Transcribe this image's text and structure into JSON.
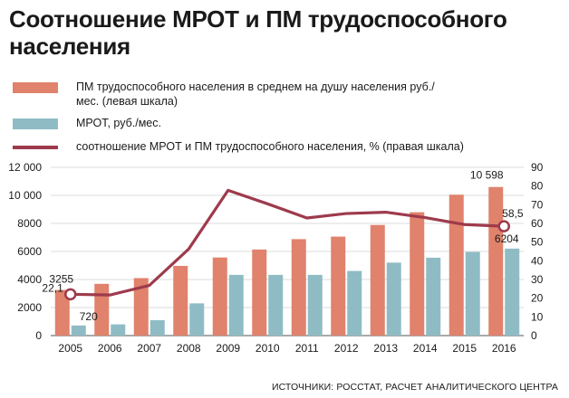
{
  "header": {
    "title": "Соотношение МРОТ и ПМ трудоспособного населения"
  },
  "legend": [
    {
      "label": "ПМ трудоспособного населения в среднем на душу населения руб./мес. (левая шкала)",
      "color": "#e0826c",
      "kind": "bar"
    },
    {
      "label": "МРОТ, руб./мес.",
      "color": "#8fbcc4",
      "kind": "bar"
    },
    {
      "label": "соотношение МРОТ и ПМ трудоспособного населения, % (правая шкала)",
      "color": "#9e3a4c",
      "kind": "line"
    }
  ],
  "source": "ИСТОЧНИКИ: РОССТАТ, РАСЧЕТ АНАЛИТИЧЕСКОГО ЦЕНТРА",
  "chart_data": {
    "type": "bar",
    "categories": [
      "2005",
      "2006",
      "2007",
      "2008",
      "2009",
      "2010",
      "2011",
      "2012",
      "2013",
      "2014",
      "2015",
      "2016"
    ],
    "series": [
      {
        "name": "ПМ трудоспособного населения в среднем на душу населения руб./мес. (левая шкала)",
        "type": "bar",
        "axis": "left",
        "color": "#e0826c",
        "values": [
          3255,
          3690,
          4100,
          4970,
          5570,
          6140,
          6880,
          7060,
          7890,
          8800,
          10050,
          10598
        ]
      },
      {
        "name": "МРОТ, руб./мес.",
        "type": "bar",
        "axis": "left",
        "color": "#8fbcc4",
        "values": [
          720,
          800,
          1100,
          2300,
          4330,
          4330,
          4330,
          4610,
          5205,
          5554,
          5965,
          6204
        ]
      },
      {
        "name": "соотношение МРОТ и ПМ трудоспособного населения, % (правая шкала)",
        "type": "line",
        "axis": "right",
        "color": "#9e3a4c",
        "values": [
          22.1,
          21.7,
          26.8,
          46.3,
          77.7,
          70.5,
          62.9,
          65.3,
          66.0,
          63.1,
          59.4,
          58.5
        ]
      }
    ],
    "left_axis": {
      "min": 0,
      "max": 12000,
      "ticks": [
        "0",
        "2000",
        "4000",
        "6000",
        "8000",
        "10 000",
        "12 000"
      ]
    },
    "right_axis": {
      "min": 0,
      "max": 90,
      "ticks": [
        "0",
        "10",
        "20",
        "30",
        "40",
        "50",
        "60",
        "70",
        "80",
        "90"
      ]
    },
    "annotations": [
      {
        "text": "3255",
        "series": 0,
        "index": 0
      },
      {
        "text": "720",
        "series": 1,
        "index": 0
      },
      {
        "text": "22,1",
        "series": 2,
        "index": 0
      },
      {
        "text": "10 598",
        "series": 0,
        "index": 11
      },
      {
        "text": "6204",
        "series": 1,
        "index": 11
      },
      {
        "text": "58,5",
        "series": 2,
        "index": 11
      }
    ]
  }
}
